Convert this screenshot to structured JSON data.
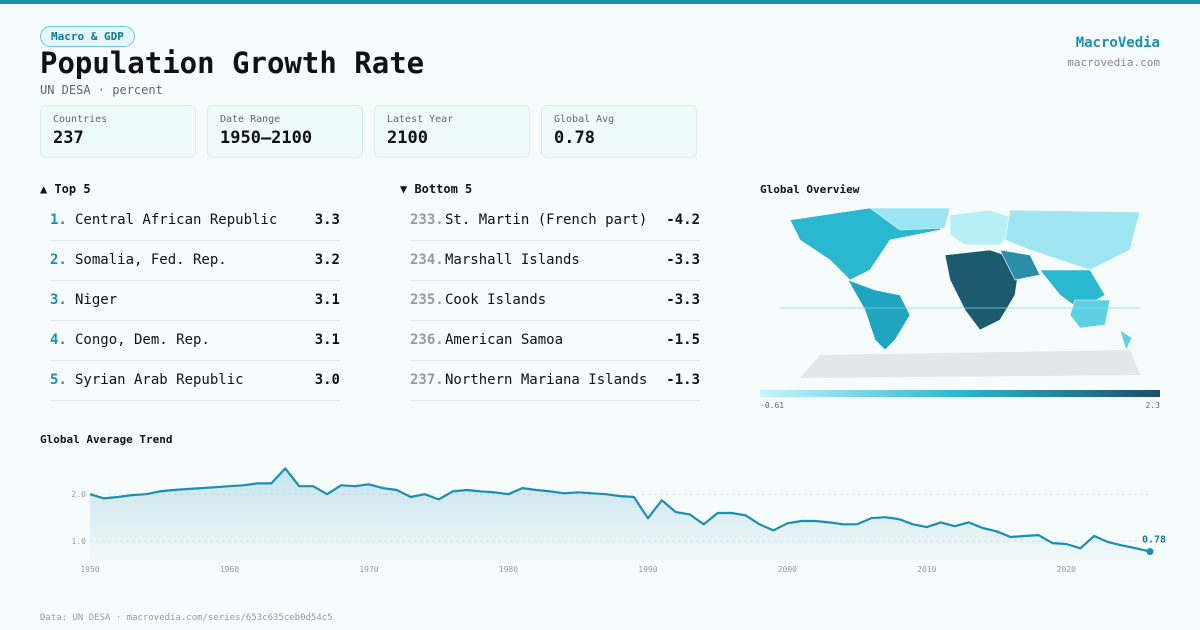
{
  "header": {
    "badge": "Macro & GDP",
    "title": "Population Growth Rate",
    "subtitle": "UN DESA · percent",
    "brand": "MacroVedia",
    "site": "macrovedia.com"
  },
  "stats": [
    {
      "label": "Countries",
      "value": "237"
    },
    {
      "label": "Date Range",
      "value": "1950–2100"
    },
    {
      "label": "Latest Year",
      "value": "2100"
    },
    {
      "label": "Global Avg",
      "value": "0.78"
    }
  ],
  "top": {
    "title": "▲ Top 5",
    "rows": [
      {
        "rank": "1.",
        "name": "Central African Republic",
        "value": "3.3"
      },
      {
        "rank": "2.",
        "name": "Somalia, Fed. Rep.",
        "value": "3.2"
      },
      {
        "rank": "3.",
        "name": "Niger",
        "value": "3.1"
      },
      {
        "rank": "4.",
        "name": "Congo, Dem. Rep.",
        "value": "3.1"
      },
      {
        "rank": "5.",
        "name": "Syrian Arab Republic",
        "value": "3.0"
      }
    ]
  },
  "bottom": {
    "title": "▼ Bottom 5",
    "rows": [
      {
        "rank": "233.",
        "name": "St. Martin (French part)",
        "value": "-4.2"
      },
      {
        "rank": "234.",
        "name": "Marshall Islands",
        "value": "-3.3"
      },
      {
        "rank": "235.",
        "name": "Cook Islands",
        "value": "-3.3"
      },
      {
        "rank": "236.",
        "name": "American Samoa",
        "value": "-1.5"
      },
      {
        "rank": "237.",
        "name": "Northern Mariana Islands",
        "value": "-1.3"
      }
    ]
  },
  "map": {
    "title": "Global Overview",
    "scale_min": "-0.61",
    "scale_max": "2.3"
  },
  "footer": "Data: UN DESA · macrovedia.com/series/653c635ceb0d54c5",
  "chart_data": {
    "type": "line",
    "title": "Global Average Trend",
    "color": "#1a8fb0",
    "x": [
      1950,
      1951,
      1952,
      1953,
      1954,
      1955,
      1956,
      1957,
      1958,
      1959,
      1960,
      1961,
      1962,
      1963,
      1964,
      1965,
      1966,
      1967,
      1968,
      1969,
      1970,
      1971,
      1972,
      1973,
      1974,
      1975,
      1976,
      1977,
      1978,
      1979,
      1980,
      1981,
      1982,
      1983,
      1984,
      1985,
      1986,
      1987,
      1988,
      1989,
      1990,
      1991,
      1992,
      1993,
      1994,
      1995,
      1996,
      1997,
      1998,
      1999,
      2000,
      2001,
      2002,
      2003,
      2004,
      2005,
      2006,
      2007,
      2008,
      2009,
      2010,
      2011,
      2012,
      2013,
      2014,
      2015,
      2016,
      2017,
      2018,
      2019,
      2020,
      2021,
      2022,
      2023,
      2024,
      2025,
      2026
    ],
    "values": [
      2.0,
      1.91,
      1.94,
      1.98,
      2.0,
      2.06,
      2.09,
      2.11,
      2.13,
      2.15,
      2.17,
      2.19,
      2.23,
      2.23,
      2.55,
      2.17,
      2.17,
      2.0,
      2.19,
      2.17,
      2.21,
      2.13,
      2.09,
      1.94,
      2.0,
      1.89,
      2.06,
      2.09,
      2.06,
      2.04,
      2.0,
      2.13,
      2.09,
      2.06,
      2.02,
      2.04,
      2.02,
      2.0,
      1.96,
      1.94,
      1.49,
      1.87,
      1.62,
      1.57,
      1.36,
      1.6,
      1.6,
      1.55,
      1.36,
      1.23,
      1.38,
      1.43,
      1.43,
      1.4,
      1.36,
      1.36,
      1.49,
      1.51,
      1.47,
      1.36,
      1.3,
      1.4,
      1.32,
      1.4,
      1.28,
      1.21,
      1.09,
      1.11,
      1.13,
      0.96,
      0.94,
      0.85,
      1.11,
      0.98,
      0.91,
      0.85,
      0.78
    ],
    "xlim": [
      1950,
      2026
    ],
    "xticks": [
      1950,
      1960,
      1970,
      1980,
      1990,
      2000,
      2010,
      2020
    ],
    "ylim": [
      0.6,
      2.6
    ],
    "yticks": [
      {
        "value": 1,
        "label": "1.0"
      },
      {
        "value": 2,
        "label": "2.0"
      }
    ],
    "grid": true
  }
}
